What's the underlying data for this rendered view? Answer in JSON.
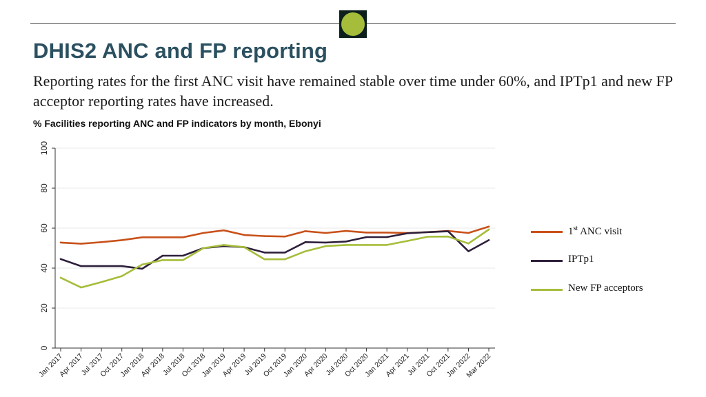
{
  "header": {
    "title": "DHIS2 ANC and FP reporting",
    "subtitle": "Reporting rates for the first ANC visit have remained stable over time under 60%, and IPTp1 and new FP acceptor reporting rates have increased."
  },
  "colors": {
    "title": "#2b5060",
    "logo_dot": "#a5bd3a",
    "logo_bg": "#0d1f1c"
  },
  "legend": {
    "anc_label_prefix": "1",
    "anc_label_sup": "st",
    "anc_label_suffix": " ANC visit",
    "iptp_label": "IPTp1",
    "fp_label": "New FP acceptors"
  },
  "chart_data": {
    "type": "line",
    "title": "% Facilities reporting ANC and FP indicators by month, Ebonyi",
    "xlabel": "",
    "ylabel": "",
    "ylim": [
      0,
      100
    ],
    "yticks": [
      0,
      20,
      40,
      60,
      80,
      100
    ],
    "grid": true,
    "legend_position": "right",
    "x": [
      "Jan 2017",
      "Apr 2017",
      "Jul 2017",
      "Oct 2017",
      "Jan 2018",
      "Apr 2018",
      "Jul 2018",
      "Oct 2018",
      "Jan 2019",
      "Apr 2019",
      "Jul 2019",
      "Oct 2019",
      "Jan 2020",
      "Apr 2020",
      "Jul 2020",
      "Oct 2020",
      "Jan 2021",
      "Apr 2021",
      "Jul 2021",
      "Oct 2021",
      "Jan 2022",
      "Mar 2022"
    ],
    "series": [
      {
        "name": "1st ANC visit",
        "color": "#c8511a",
        "values": [
          52.8,
          52.2,
          53.0,
          54.0,
          55.4,
          55.4,
          55.4,
          57.6,
          58.9,
          56.6,
          56.0,
          55.8,
          58.5,
          57.6,
          58.6,
          57.8,
          57.8,
          57.6,
          58.0,
          58.6,
          57.6,
          60.8
        ]
      },
      {
        "name": "IPTp1",
        "color": "#2e1f3b",
        "values": [
          44.5,
          41.0,
          41.0,
          41.0,
          39.7,
          46.2,
          46.2,
          50.0,
          51.0,
          50.5,
          47.8,
          47.8,
          53.0,
          52.8,
          53.3,
          55.5,
          55.5,
          57.4,
          58.0,
          58.4,
          48.4,
          54.0
        ]
      },
      {
        "name": "New FP acceptors",
        "color": "#a5bd3a",
        "values": [
          35.2,
          30.3,
          33.0,
          36.0,
          41.8,
          44.0,
          44.0,
          50.0,
          51.6,
          50.5,
          44.4,
          44.4,
          48.4,
          51.0,
          51.6,
          51.6,
          51.6,
          53.6,
          55.7,
          55.8,
          52.3,
          59.3
        ]
      }
    ]
  }
}
